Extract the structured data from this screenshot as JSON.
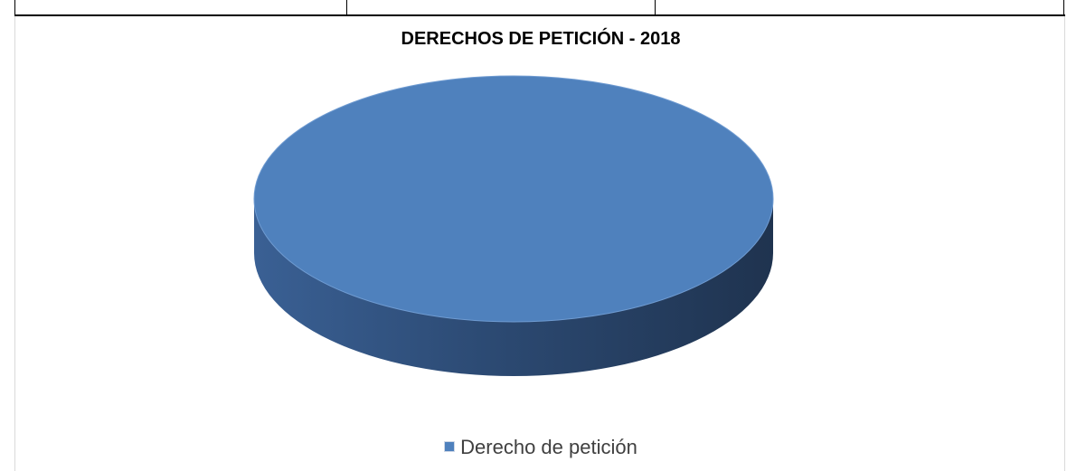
{
  "chart_data": {
    "type": "pie",
    "title": "DERECHOS DE PETICIÓN - 2018",
    "categories": [
      "Derecho de petición"
    ],
    "values": [
      100
    ],
    "legend_position": "bottom",
    "colors": [
      "#4f81bd"
    ]
  }
}
